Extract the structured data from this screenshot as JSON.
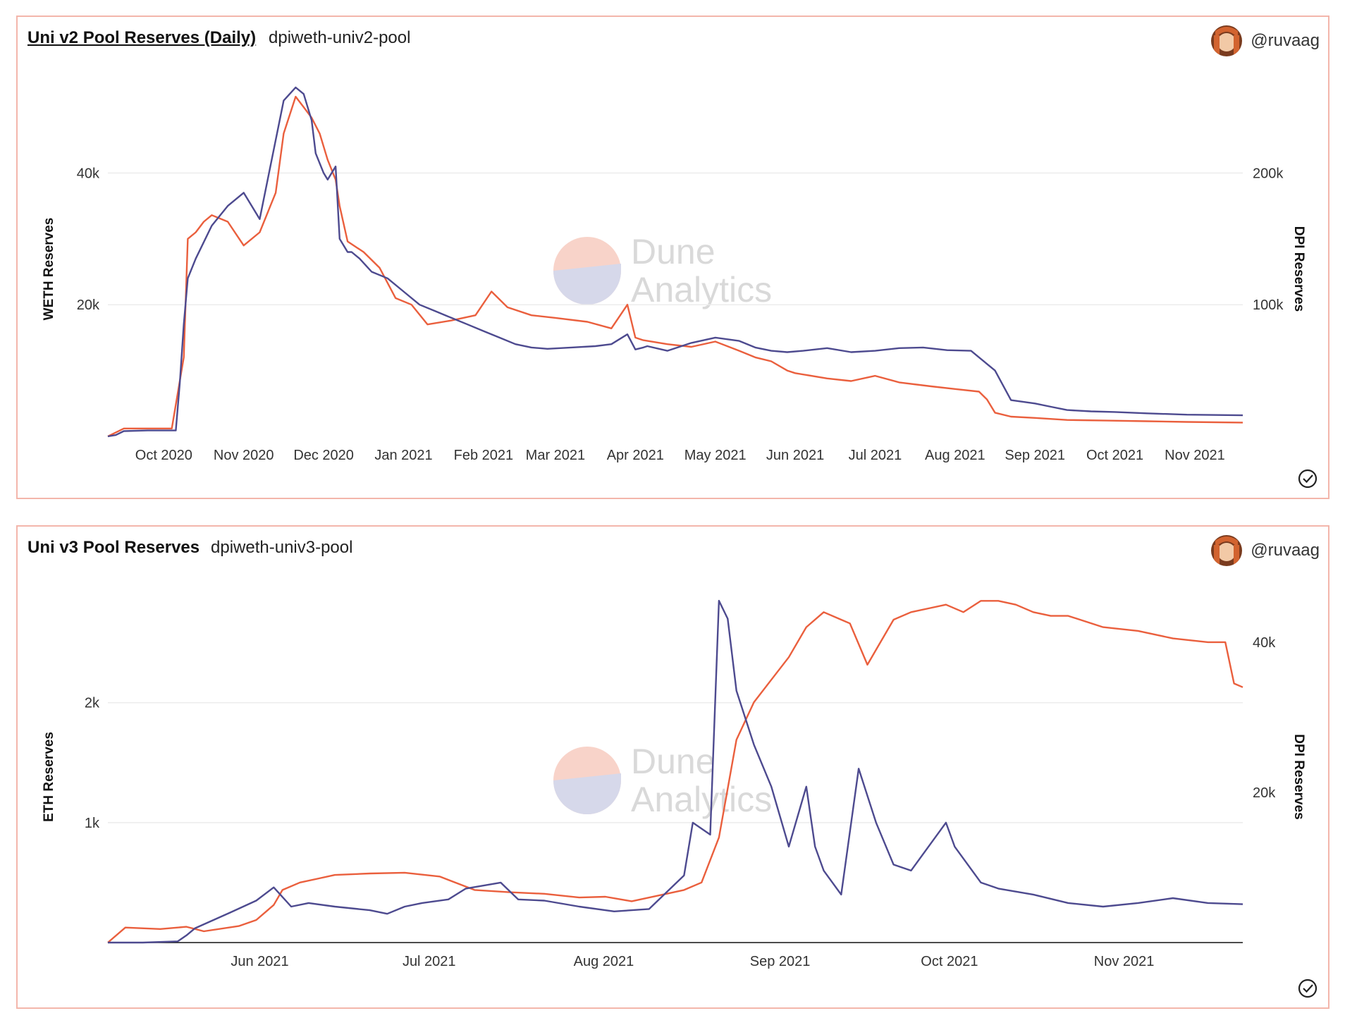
{
  "colors": {
    "weth": "#4d4a8f",
    "dpi": "#ea5f3d",
    "border": "#f3b6ab",
    "grid": "#ececec"
  },
  "panels": [
    {
      "title": "Uni v2 Pool Reserves (Daily)",
      "subtitle": "dpiweth-univ2-pool",
      "user": "@ruvaag",
      "watermark": [
        "Dune",
        "Analytics"
      ],
      "avatar_icon": "avatar-icon",
      "check_icon": "check-circle-icon"
    },
    {
      "title": "Uni v3 Pool Reserves",
      "subtitle": "dpiweth-univ3-pool",
      "user": "@ruvaag",
      "watermark": [
        "Dune",
        "Analytics"
      ],
      "avatar_icon": "avatar-icon",
      "check_icon": "check-circle-icon"
    }
  ],
  "chart_data": [
    {
      "type": "line",
      "title": "Uni v2 Pool Reserves (Daily)",
      "xlabel": "",
      "ylabel": "WETH Reserves",
      "y2label": "DPI Reserves",
      "xlim": [
        0,
        14.2
      ],
      "x_ticks": [
        {
          "x": 0.7,
          "label": "Oct 2020"
        },
        {
          "x": 1.7,
          "label": "Nov 2020"
        },
        {
          "x": 2.7,
          "label": "Dec 2020"
        },
        {
          "x": 3.7,
          "label": "Jan 2021"
        },
        {
          "x": 4.7,
          "label": "Feb 2021"
        },
        {
          "x": 5.6,
          "label": "Mar 2021"
        },
        {
          "x": 6.6,
          "label": "Apr 2021"
        },
        {
          "x": 7.6,
          "label": "May 2021"
        },
        {
          "x": 8.6,
          "label": "Jun 2021"
        },
        {
          "x": 9.6,
          "label": "Jul 2021"
        },
        {
          "x": 10.6,
          "label": "Aug 2021"
        },
        {
          "x": 11.6,
          "label": "Sep 2021"
        },
        {
          "x": 12.6,
          "label": "Oct 2021"
        },
        {
          "x": 13.6,
          "label": "Nov 2021"
        }
      ],
      "ylim": [
        0,
        53000
      ],
      "y_ticks": [
        {
          "v": 20000,
          "label": "20k"
        },
        {
          "v": 40000,
          "label": "40k"
        }
      ],
      "y2lim": [
        0,
        265000
      ],
      "y2_ticks": [
        {
          "v": 100000,
          "label": "100k"
        },
        {
          "v": 200000,
          "label": "200k"
        }
      ],
      "series": [
        {
          "name": "WETH Reserves",
          "axis": "left",
          "color": "#4d4a8f",
          "x": [
            0,
            0.1,
            0.2,
            0.5,
            0.85,
            0.9,
            0.95,
            1.0,
            1.1,
            1.3,
            1.5,
            1.7,
            1.9,
            2.05,
            2.2,
            2.35,
            2.45,
            2.55,
            2.6,
            2.7,
            2.75,
            2.85,
            2.9,
            3.0,
            3.05,
            3.15,
            3.3,
            3.5,
            3.7,
            3.9,
            4.1,
            4.3,
            4.5,
            4.7,
            4.9,
            5.1,
            5.3,
            5.5,
            5.8,
            6.1,
            6.3,
            6.5,
            6.6,
            6.7,
            6.75,
            7.0,
            7.3,
            7.6,
            7.9,
            8.1,
            8.3,
            8.5,
            8.7,
            9.0,
            9.3,
            9.6,
            9.9,
            10.2,
            10.5,
            10.8,
            11.0,
            11.1,
            11.3,
            11.6,
            11.8,
            12.0,
            12.3,
            12.6,
            13.0,
            13.5,
            14.2
          ],
          "y": [
            0,
            200,
            800,
            900,
            900,
            8000,
            17000,
            24000,
            27000,
            32000,
            35000,
            37000,
            33000,
            42000,
            51000,
            53000,
            52000,
            48000,
            43000,
            40000,
            39000,
            41000,
            30000,
            28000,
            28000,
            27000,
            25000,
            24000,
            22000,
            20000,
            19000,
            18000,
            17000,
            16000,
            15000,
            14000,
            13500,
            13300,
            13500,
            13700,
            14000,
            15500,
            13200,
            13500,
            13700,
            13000,
            14200,
            15000,
            14500,
            13500,
            13000,
            12800,
            13000,
            13400,
            12800,
            13000,
            13400,
            13500,
            13100,
            13000,
            11000,
            10000,
            5500,
            5000,
            4500,
            4000,
            3800,
            3700,
            3500,
            3300,
            3200
          ]
        },
        {
          "name": "DPI Reserves",
          "axis": "right",
          "color": "#ea5f3d",
          "x": [
            0,
            0.2,
            0.8,
            0.95,
            1.0,
            1.1,
            1.2,
            1.3,
            1.5,
            1.7,
            1.9,
            2.1,
            2.2,
            2.35,
            2.45,
            2.55,
            2.65,
            2.75,
            2.85,
            2.9,
            3.0,
            3.2,
            3.4,
            3.6,
            3.8,
            4.0,
            4.3,
            4.6,
            4.8,
            5.0,
            5.3,
            5.6,
            6.0,
            6.3,
            6.5,
            6.6,
            6.7,
            7.0,
            7.3,
            7.6,
            7.9,
            8.1,
            8.3,
            8.5,
            8.6,
            9.0,
            9.3,
            9.6,
            9.9,
            10.3,
            10.6,
            10.9,
            11.0,
            11.1,
            11.3,
            11.6,
            12.0,
            12.5,
            13.0,
            13.5,
            14.2
          ],
          "y": [
            0,
            6000,
            6000,
            60000,
            150000,
            155000,
            163000,
            168000,
            163000,
            145000,
            155000,
            185000,
            230000,
            258000,
            250000,
            242000,
            230000,
            210000,
            195000,
            175000,
            148000,
            140000,
            128000,
            105000,
            100000,
            85000,
            88000,
            92000,
            110000,
            98000,
            92000,
            90000,
            87000,
            82000,
            100000,
            75000,
            73000,
            70000,
            68000,
            72000,
            65000,
            60000,
            57000,
            50000,
            48000,
            44000,
            42000,
            46000,
            41000,
            38000,
            36000,
            34000,
            28000,
            18000,
            15000,
            14000,
            12500,
            12000,
            11500,
            11000,
            10500
          ]
        }
      ]
    },
    {
      "type": "line",
      "title": "Uni v3 Pool Reserves",
      "xlabel": "",
      "ylabel": "ETH Reserves",
      "y2label": "DPI Reserves",
      "xlim": [
        0,
        6.5
      ],
      "x_ticks": [
        {
          "x": 0.87,
          "label": "Jun 2021"
        },
        {
          "x": 1.84,
          "label": "Jul 2021"
        },
        {
          "x": 2.84,
          "label": "Aug 2021"
        },
        {
          "x": 3.85,
          "label": "Sep 2021"
        },
        {
          "x": 4.82,
          "label": "Oct 2021"
        },
        {
          "x": 5.82,
          "label": "Nov 2021"
        }
      ],
      "ylim": [
        0,
        2880
      ],
      "y_ticks": [
        {
          "v": 1000,
          "label": "1k"
        },
        {
          "v": 2000,
          "label": "2k"
        }
      ],
      "y2lim": [
        0,
        46000
      ],
      "y2_ticks": [
        {
          "v": 20000,
          "label": "20k"
        },
        {
          "v": 40000,
          "label": "40k"
        }
      ],
      "series": [
        {
          "name": "ETH Reserves",
          "axis": "left",
          "color": "#4d4a8f",
          "x": [
            0,
            0.2,
            0.4,
            0.45,
            0.5,
            0.7,
            0.85,
            0.95,
            1.05,
            1.15,
            1.3,
            1.5,
            1.6,
            1.7,
            1.8,
            1.95,
            2.05,
            2.25,
            2.35,
            2.5,
            2.7,
            2.9,
            3.1,
            3.3,
            3.35,
            3.45,
            3.5,
            3.55,
            3.6,
            3.7,
            3.8,
            3.9,
            4.0,
            4.05,
            4.1,
            4.2,
            4.3,
            4.4,
            4.5,
            4.6,
            4.8,
            4.85,
            4.95,
            5.0,
            5.1,
            5.3,
            5.5,
            5.7,
            5.9,
            6.1,
            6.3,
            6.5
          ],
          "y": [
            0,
            0,
            10,
            60,
            120,
            250,
            350,
            460,
            300,
            330,
            300,
            270,
            240,
            300,
            330,
            360,
            450,
            500,
            360,
            350,
            300,
            260,
            280,
            560,
            1000,
            900,
            2850,
            2700,
            2100,
            1650,
            1300,
            800,
            1300,
            800,
            600,
            400,
            1450,
            1000,
            650,
            600,
            1000,
            800,
            600,
            500,
            450,
            400,
            330,
            300,
            330,
            370,
            330,
            320
          ]
        },
        {
          "name": "DPI Reserves",
          "axis": "right",
          "color": "#ea5f3d",
          "x": [
            0,
            0.1,
            0.3,
            0.45,
            0.55,
            0.75,
            0.85,
            0.95,
            1.0,
            1.1,
            1.2,
            1.3,
            1.5,
            1.7,
            1.9,
            2.1,
            2.3,
            2.5,
            2.7,
            2.85,
            3.0,
            3.2,
            3.3,
            3.4,
            3.5,
            3.6,
            3.7,
            3.8,
            3.9,
            4.0,
            4.1,
            4.2,
            4.25,
            4.35,
            4.4,
            4.5,
            4.6,
            4.7,
            4.8,
            4.9,
            5.0,
            5.1,
            5.2,
            5.3,
            5.4,
            5.5,
            5.7,
            5.9,
            6.1,
            6.3,
            6.4,
            6.45,
            6.5
          ],
          "y": [
            0,
            2000,
            1800,
            2100,
            1500,
            2200,
            3000,
            5000,
            7000,
            8000,
            8500,
            9000,
            9200,
            9300,
            8800,
            7000,
            6700,
            6500,
            6000,
            6100,
            5500,
            6500,
            7000,
            8000,
            14000,
            27000,
            32000,
            35000,
            38000,
            42000,
            44000,
            43000,
            42500,
            37000,
            39000,
            43000,
            44000,
            44500,
            45000,
            44000,
            45500,
            45500,
            45000,
            44000,
            43500,
            43500,
            42000,
            41500,
            40500,
            40000,
            40000,
            34500,
            34000
          ]
        }
      ]
    }
  ]
}
